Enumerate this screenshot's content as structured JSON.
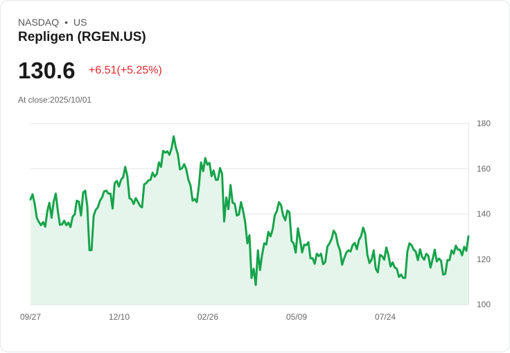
{
  "header": {
    "exchange": "NASDAQ",
    "separator": "•",
    "country": "US",
    "name": "Repligen (RGEN.US)",
    "price": "130.6",
    "change": "+6.51(+5.25%)",
    "close_label": "At close:2025/10/01"
  },
  "colors": {
    "line": "#16a34a",
    "fill": "#e6f5ec",
    "down": "#e0262b",
    "grid": "#e3e3e3"
  },
  "chart_data": {
    "type": "area",
    "ylim": [
      100,
      180
    ],
    "y_ticks": [
      "180",
      "160",
      "140",
      "120",
      "100"
    ],
    "y_tick_values": [
      180,
      160,
      140,
      120,
      100
    ],
    "x_ticks": [
      "09/27",
      "12/10",
      "02/26",
      "05/09",
      "07/24"
    ],
    "grid": true,
    "series": [
      {
        "name": "RGEN.US",
        "values": [
          146.4,
          148.7,
          144.4,
          138.3,
          136.4,
          135,
          136.4,
          134.4,
          141.3,
          144.9,
          138.3,
          145.4,
          149,
          141.3,
          135.2,
          135.4,
          137,
          135,
          136.2,
          134.2,
          138.8,
          139.8,
          145.9,
          145.4,
          139.3,
          149.5,
          150.3,
          143.4,
          124,
          124,
          139.3,
          141.8,
          142.9,
          145.9,
          147.3,
          150,
          150.3,
          149,
          149,
          142.4,
          153.6,
          154.6,
          152.1,
          155.1,
          156.2,
          160.8,
          156.7,
          147,
          146.4,
          144.4,
          147,
          145.4,
          143.6,
          142.9,
          153.1,
          153.6,
          154.8,
          155.1,
          158.2,
          156.5,
          157.7,
          162.8,
          160.8,
          167.9,
          167.1,
          167.7,
          166.1,
          169,
          174.3,
          169.5,
          166.4,
          159.7,
          160.2,
          162,
          159.7,
          155.1,
          152.6,
          145.9,
          146.6,
          145.2,
          152.6,
          162.8,
          158.9,
          164.7,
          161.8,
          162.6,
          156.7,
          159.2,
          155.1,
          155.1,
          160.3,
          157.7,
          136.7,
          147.3,
          142.1,
          152.8,
          144.9,
          144.6,
          139.3,
          139.8,
          145.2,
          141.3,
          136.2,
          127,
          130.6,
          111.7,
          115.8,
          108.6,
          123.9,
          115.2,
          121.9,
          127,
          126.5,
          132.1,
          130.1,
          133.1,
          139.3,
          141.3,
          145.2,
          143.9,
          139.3,
          137.2,
          141.5,
          140.8,
          128,
          127,
          122.9,
          133.7,
          129,
          123,
          126.4,
          126.2,
          127.5,
          120.4,
          120.4,
          118,
          122.4,
          121.4,
          122.4,
          117.8,
          118.8,
          125.5,
          127,
          129,
          132.6,
          131.1,
          126.5,
          123.9,
          117.6,
          120.4,
          122.9,
          123.9,
          123.4,
          126.2,
          127.2,
          124.4,
          128.5,
          130.1,
          134,
          131.1,
          121.9,
          118.3,
          119.8,
          123.9,
          115.8,
          114.2,
          121.9,
          121.4,
          119.8,
          125.2,
          121.9,
          116.8,
          118.6,
          116.3,
          115.8,
          112.2,
          113.2,
          111.7,
          111.7,
          123.4,
          127,
          126.2,
          124.2,
          123.4,
          119.6,
          124.4,
          121,
          119.8,
          122.4,
          121.4,
          116.3,
          120,
          124.2,
          119,
          120.3,
          119.3,
          113.2,
          113.5,
          119.6,
          119.6,
          123.9,
          122.4,
          126,
          124.2,
          124.2,
          121.7,
          125.5,
          123.7,
          130.1
        ]
      }
    ]
  }
}
